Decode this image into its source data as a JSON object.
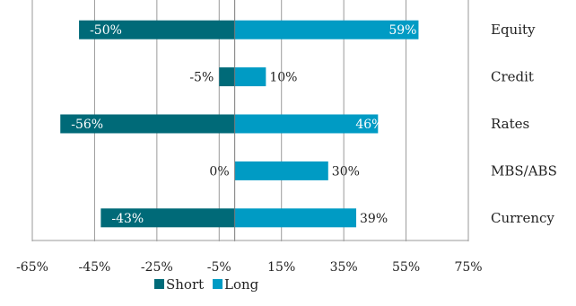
{
  "chart_data": {
    "type": "bar",
    "orientation": "horizontal",
    "categories": [
      "Equity",
      "Credit",
      "Rates",
      "MBS/ABS",
      "Currency"
    ],
    "series": [
      {
        "name": "Short",
        "values": [
          -50,
          -5,
          -56,
          0,
          -43
        ],
        "labels": [
          "-50%",
          "-5%",
          "-56%",
          "0%",
          "-43%"
        ],
        "color": "#006a78"
      },
      {
        "name": "Long",
        "values": [
          59,
          10,
          46,
          30,
          39
        ],
        "labels": [
          "59%",
          "10%",
          "46%",
          "30%",
          "39%"
        ],
        "color": "#009bc4"
      }
    ],
    "xlim": [
      -65,
      75
    ],
    "xticks": [
      -65,
      -45,
      -25,
      -5,
      15,
      35,
      55,
      75
    ],
    "xtick_labels": [
      "-65%",
      "-45%",
      "-25%",
      "-5%",
      "15%",
      "35%",
      "55%",
      "75%"
    ],
    "title": "",
    "xlabel": "",
    "ylabel": "",
    "grid": "vertical",
    "legend": "bottom-center",
    "category_labels_side": "right"
  }
}
